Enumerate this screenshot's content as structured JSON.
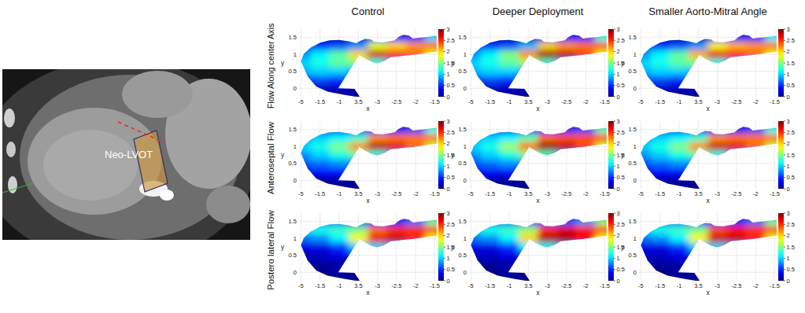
{
  "figure": {
    "columns": [
      "Control",
      "Deeper Deployment",
      "Smaller Aorto-Mitral Angle"
    ],
    "rows": [
      "Flow Along center Axis",
      "Anteroseptal Flow",
      "Postero lateral Flow"
    ],
    "image_label": "Neo-LVOT"
  },
  "chart_data": [
    {
      "type": "heatmap",
      "x_label": "x",
      "y_label": "y",
      "categories": [
        "-5",
        "-1.5",
        "-1",
        "3.5",
        "-3",
        "-2.5",
        "-2",
        "-1.5"
      ],
      "ylim": [
        -0.25,
        1.75
      ],
      "yticks": [
        0,
        0.5,
        1,
        1.5
      ],
      "grid": true,
      "y": [
        1.75,
        1.5,
        1.25,
        1,
        0.75,
        0.5,
        0.25,
        0,
        -0.25
      ],
      "cells": [
        [
          0,
          0,
          0,
          0,
          0,
          0,
          0,
          0
        ],
        [
          0,
          0.2,
          0.1,
          0.2,
          0.3,
          0.4,
          0.5,
          1.0
        ],
        [
          0.3,
          0.5,
          0.6,
          0.8,
          1.8,
          2.0,
          2.2,
          2.3
        ],
        [
          0.8,
          1.1,
          1.4,
          2.0,
          2.8,
          2.6,
          2.3,
          1.8
        ],
        [
          1.0,
          1.2,
          1.4,
          1.5,
          1.2,
          0.8,
          0.4,
          0.2
        ],
        [
          0.9,
          1.0,
          1.0,
          0.8,
          0.3,
          0,
          0,
          0
        ],
        [
          0.5,
          0.6,
          0.5,
          0.3,
          0.1,
          0,
          0,
          0
        ],
        [
          0.1,
          0.2,
          0.2,
          0.2,
          0.1,
          0,
          0,
          0
        ],
        [
          0,
          0,
          0,
          0,
          0,
          0,
          0,
          0
        ]
      ],
      "colorbar": {
        "range": [
          0,
          3
        ],
        "ticks": [
          0,
          0.5,
          1,
          1.5,
          2,
          2.5,
          3
        ]
      }
    },
    {
      "type": "heatmap",
      "x_label": "x",
      "y_label": "y",
      "categories": [
        "-5",
        "-1.5",
        "-1",
        "3.5",
        "-3",
        "-2.5",
        "-2",
        "-1.5"
      ],
      "ylim": [
        -0.25,
        1.75
      ],
      "yticks": [
        0,
        0.5,
        1,
        1.5
      ],
      "grid": true,
      "y": [
        1.75,
        1.5,
        1.25,
        1,
        0.75,
        0.5,
        0.25,
        0,
        -0.25
      ],
      "cells": [
        [
          0,
          0,
          0,
          0,
          0,
          0,
          0,
          0
        ],
        [
          0,
          0.2,
          0.1,
          0.2,
          0.3,
          0.4,
          0.5,
          1.2
        ],
        [
          0.3,
          0.5,
          0.6,
          0.9,
          2.0,
          2.2,
          2.3,
          2.4
        ],
        [
          0.8,
          1.1,
          1.5,
          2.2,
          2.95,
          2.8,
          2.4,
          1.8
        ],
        [
          1.0,
          1.2,
          1.4,
          1.6,
          1.3,
          0.8,
          0.4,
          0.2
        ],
        [
          0.9,
          1.0,
          1.0,
          0.8,
          0.3,
          0,
          0,
          0
        ],
        [
          0.5,
          0.6,
          0.5,
          0.3,
          0.1,
          0,
          0,
          0
        ],
        [
          0.1,
          0.2,
          0.2,
          0.2,
          0.1,
          0,
          0,
          0
        ],
        [
          0,
          0,
          0,
          0,
          0,
          0,
          0,
          0
        ]
      ],
      "colorbar": {
        "range": [
          0,
          3
        ],
        "ticks": [
          0,
          0.5,
          1,
          1.5,
          2,
          2.5,
          3
        ]
      }
    },
    {
      "type": "heatmap",
      "x_label": "x",
      "y_label": "y",
      "categories": [
        "-5",
        "-1.5",
        "-1",
        "3.5",
        "-3",
        "-2.5",
        "-2",
        "-1.5"
      ],
      "ylim": [
        -0.25,
        1.75
      ],
      "yticks": [
        0,
        0.5,
        1,
        1.5
      ],
      "grid": true,
      "y": [
        1.75,
        1.5,
        1.25,
        1,
        0.75,
        0.5,
        0.25,
        0,
        -0.25
      ],
      "cells": [
        [
          0,
          0,
          0,
          0,
          0,
          0,
          0,
          0
        ],
        [
          0,
          0.2,
          0.1,
          0.2,
          0.3,
          0.4,
          0.5,
          1.1
        ],
        [
          0.3,
          0.5,
          0.6,
          0.8,
          1.9,
          2.1,
          2.2,
          2.3
        ],
        [
          0.8,
          1.1,
          1.4,
          2.1,
          2.75,
          2.6,
          2.3,
          1.8
        ],
        [
          1.0,
          1.2,
          1.4,
          1.5,
          1.2,
          0.8,
          0.4,
          0.2
        ],
        [
          0.9,
          1.0,
          1.0,
          0.8,
          0.3,
          0,
          0,
          0
        ],
        [
          0.5,
          0.6,
          0.5,
          0.3,
          0.1,
          0,
          0,
          0
        ],
        [
          0.1,
          0.2,
          0.2,
          0.2,
          0.1,
          0,
          0,
          0
        ],
        [
          0,
          0,
          0,
          0,
          0,
          0,
          0,
          0
        ]
      ],
      "colorbar": {
        "range": [
          0,
          3
        ],
        "ticks": [
          0,
          0.5,
          1,
          1.5,
          2,
          2.5,
          3
        ]
      }
    },
    {
      "type": "heatmap",
      "x_label": "x",
      "y_label": "y",
      "categories": [
        "-5",
        "-1.5",
        "-1",
        "3.5",
        "-3",
        "-2.5",
        "-2",
        "-1.5"
      ],
      "ylim": [
        -0.25,
        1.75
      ],
      "yticks": [
        0,
        0.5,
        1,
        1.5
      ],
      "grid": true,
      "y": [
        1.75,
        1.5,
        1.25,
        1,
        0.75,
        0.5,
        0.25,
        0,
        -0.25
      ],
      "cells": [
        [
          0,
          0,
          0,
          0,
          0,
          0,
          0,
          0
        ],
        [
          0.3,
          0.5,
          0.5,
          0.4,
          0.4,
          0.4,
          0.6,
          1.2
        ],
        [
          0.8,
          1.0,
          1.1,
          1.3,
          2.2,
          2.3,
          2.3,
          2.3
        ],
        [
          1.0,
          1.2,
          1.5,
          2.2,
          2.85,
          2.7,
          2.3,
          1.7
        ],
        [
          0.8,
          1.0,
          1.2,
          1.4,
          1.2,
          0.8,
          0.4,
          0.2
        ],
        [
          0.6,
          0.7,
          0.8,
          0.7,
          0.3,
          0,
          0,
          0
        ],
        [
          0.3,
          0.4,
          0.4,
          0.3,
          0.1,
          0,
          0,
          0
        ],
        [
          0.1,
          0.1,
          0.1,
          0.1,
          0.1,
          0,
          0,
          0
        ],
        [
          0,
          0,
          0,
          0,
          0,
          0,
          0,
          0
        ]
      ],
      "colorbar": {
        "range": [
          0,
          3
        ],
        "ticks": [
          0,
          0.5,
          1,
          1.5,
          2,
          2.5,
          3
        ]
      }
    },
    {
      "type": "heatmap",
      "x_label": "x",
      "y_label": "y",
      "categories": [
        "-5",
        "-1.5",
        "-1",
        "3.5",
        "-3",
        "-2.5",
        "-2",
        "-1.5"
      ],
      "ylim": [
        -0.25,
        1.75
      ],
      "yticks": [
        0,
        0.5,
        1,
        1.5
      ],
      "grid": true,
      "y": [
        1.75,
        1.5,
        1.25,
        1,
        0.75,
        0.5,
        0.25,
        0,
        -0.25
      ],
      "cells": [
        [
          0,
          0,
          0,
          0,
          0,
          0,
          0,
          0
        ],
        [
          0.3,
          0.5,
          0.5,
          0.4,
          0.4,
          0.5,
          0.6,
          1.3
        ],
        [
          0.8,
          1.0,
          1.1,
          1.4,
          2.3,
          2.4,
          2.4,
          2.4
        ],
        [
          1.0,
          1.2,
          1.6,
          2.3,
          2.95,
          2.8,
          2.4,
          1.7
        ],
        [
          0.8,
          1.0,
          1.2,
          1.5,
          1.3,
          0.8,
          0.4,
          0.2
        ],
        [
          0.6,
          0.7,
          0.8,
          0.7,
          0.3,
          0,
          0,
          0
        ],
        [
          0.3,
          0.4,
          0.4,
          0.3,
          0.1,
          0,
          0,
          0
        ],
        [
          0.1,
          0.1,
          0.1,
          0.1,
          0.1,
          0,
          0,
          0
        ],
        [
          0,
          0,
          0,
          0,
          0,
          0,
          0,
          0
        ]
      ],
      "colorbar": {
        "range": [
          0,
          3
        ],
        "ticks": [
          0,
          0.5,
          1,
          1.5,
          2,
          2.5,
          3
        ]
      }
    },
    {
      "type": "heatmap",
      "x_label": "x",
      "y_label": "y",
      "categories": [
        "-5",
        "-1.5",
        "-1",
        "3.5",
        "-3",
        "-2.5",
        "-2",
        "-1.5"
      ],
      "ylim": [
        -0.25,
        1.75
      ],
      "yticks": [
        0,
        0.5,
        1,
        1.5
      ],
      "grid": true,
      "y": [
        1.75,
        1.5,
        1.25,
        1,
        0.75,
        0.5,
        0.25,
        0,
        -0.25
      ],
      "cells": [
        [
          0,
          0,
          0,
          0,
          0,
          0,
          0,
          0
        ],
        [
          0.3,
          0.5,
          0.5,
          0.4,
          0.4,
          0.4,
          0.6,
          1.2
        ],
        [
          0.8,
          1.0,
          1.1,
          1.3,
          2.2,
          2.3,
          2.3,
          2.3
        ],
        [
          1.0,
          1.2,
          1.5,
          2.2,
          2.8,
          2.7,
          2.3,
          1.7
        ],
        [
          0.8,
          1.0,
          1.2,
          1.4,
          1.2,
          0.8,
          0.4,
          0.2
        ],
        [
          0.6,
          0.7,
          0.8,
          0.7,
          0.3,
          0,
          0,
          0
        ],
        [
          0.3,
          0.4,
          0.4,
          0.3,
          0.1,
          0,
          0,
          0
        ],
        [
          0.1,
          0.1,
          0.1,
          0.1,
          0.1,
          0,
          0,
          0
        ],
        [
          0,
          0,
          0,
          0,
          0,
          0,
          0,
          0
        ]
      ],
      "colorbar": {
        "range": [
          0,
          3
        ],
        "ticks": [
          0,
          0.5,
          1,
          1.5,
          2,
          2.5,
          3
        ]
      }
    },
    {
      "type": "heatmap",
      "x_label": "x",
      "y_label": "y",
      "categories": [
        "-5",
        "-1.5",
        "-1",
        "3.5",
        "-3",
        "-2.5",
        "-2",
        "-1.5"
      ],
      "ylim": [
        -0.25,
        1.75
      ],
      "yticks": [
        0,
        0.5,
        1,
        1.5
      ],
      "grid": true,
      "y": [
        1.75,
        1.5,
        1.25,
        1,
        0.75,
        0.5,
        0.25,
        0,
        -0.25
      ],
      "cells": [
        [
          0,
          0,
          0,
          0,
          0,
          0,
          0,
          0
        ],
        [
          0.4,
          0.7,
          0.7,
          0.5,
          0.5,
          0.5,
          0.7,
          1.4
        ],
        [
          1.0,
          1.2,
          1.3,
          1.5,
          2.3,
          2.5,
          2.5,
          2.4
        ],
        [
          0.7,
          0.8,
          1.1,
          1.9,
          2.7,
          2.8,
          2.5,
          1.8
        ],
        [
          0.3,
          0.3,
          0.5,
          1.0,
          1.0,
          0.8,
          0.4,
          0.2
        ],
        [
          0.2,
          0.2,
          0.3,
          0.3,
          0.2,
          0,
          0,
          0
        ],
        [
          0.1,
          0.1,
          0.1,
          0.1,
          0.1,
          0,
          0,
          0
        ],
        [
          0,
          0,
          0.1,
          0.1,
          0.1,
          0,
          0,
          0
        ],
        [
          0,
          0,
          0,
          0,
          0,
          0,
          0,
          0
        ]
      ],
      "colorbar": {
        "range": [
          0,
          3
        ],
        "ticks": [
          0,
          0.5,
          1,
          1.5,
          2,
          2.5,
          3
        ]
      }
    },
    {
      "type": "heatmap",
      "x_label": "x",
      "y_label": "y",
      "categories": [
        "-5",
        "-1.5",
        "-1",
        "3.5",
        "-3",
        "-2.5",
        "-2",
        "-1.5"
      ],
      "ylim": [
        -0.25,
        1.75
      ],
      "yticks": [
        0,
        0.5,
        1,
        1.5
      ],
      "grid": true,
      "y": [
        1.75,
        1.5,
        1.25,
        1,
        0.75,
        0.5,
        0.25,
        0,
        -0.25
      ],
      "cells": [
        [
          0,
          0,
          0,
          0,
          0,
          0,
          0,
          0
        ],
        [
          0.4,
          0.7,
          0.7,
          0.5,
          0.6,
          0.6,
          0.8,
          1.5
        ],
        [
          1.0,
          1.2,
          1.3,
          1.6,
          2.5,
          2.7,
          2.6,
          2.4
        ],
        [
          0.7,
          0.8,
          1.1,
          2.0,
          2.9,
          2.9,
          2.6,
          1.8
        ],
        [
          0.3,
          0.3,
          0.5,
          1.1,
          1.1,
          0.8,
          0.4,
          0.2
        ],
        [
          0.2,
          0.2,
          0.3,
          0.3,
          0.2,
          0,
          0,
          0
        ],
        [
          0.1,
          0.1,
          0.1,
          0.1,
          0.1,
          0,
          0,
          0
        ],
        [
          0,
          0,
          0.1,
          0.1,
          0.1,
          0,
          0,
          0
        ],
        [
          0,
          0,
          0,
          0,
          0,
          0,
          0,
          0
        ]
      ],
      "colorbar": {
        "range": [
          0,
          3
        ],
        "ticks": [
          0,
          0.5,
          1,
          1.5,
          2,
          2.5,
          3
        ]
      }
    },
    {
      "type": "heatmap",
      "x_label": "x",
      "y_label": "y",
      "categories": [
        "-5",
        "-1.5",
        "-1",
        "3.5",
        "-3",
        "-2.5",
        "-2",
        "-1.5"
      ],
      "ylim": [
        -0.25,
        1.75
      ],
      "yticks": [
        0,
        0.5,
        1,
        1.5
      ],
      "grid": true,
      "y": [
        1.75,
        1.5,
        1.25,
        1,
        0.75,
        0.5,
        0.25,
        0,
        -0.25
      ],
      "cells": [
        [
          0,
          0,
          0,
          0,
          0,
          0,
          0,
          0
        ],
        [
          0.4,
          0.7,
          0.7,
          0.5,
          0.5,
          0.5,
          0.7,
          1.4
        ],
        [
          1.0,
          1.2,
          1.3,
          1.5,
          2.4,
          2.6,
          2.5,
          2.4
        ],
        [
          0.7,
          0.8,
          1.1,
          1.9,
          2.8,
          2.8,
          2.5,
          1.8
        ],
        [
          0.3,
          0.3,
          0.5,
          1.0,
          1.0,
          0.8,
          0.4,
          0.2
        ],
        [
          0.2,
          0.2,
          0.3,
          0.3,
          0.2,
          0,
          0,
          0
        ],
        [
          0.1,
          0.1,
          0.1,
          0.1,
          0.1,
          0,
          0,
          0
        ],
        [
          0,
          0,
          0.1,
          0.1,
          0.1,
          0,
          0,
          0
        ],
        [
          0,
          0,
          0,
          0,
          0,
          0,
          0,
          0
        ]
      ],
      "colorbar": {
        "range": [
          0,
          3
        ],
        "ticks": [
          0,
          0.5,
          1,
          1.5,
          2,
          2.5,
          3
        ]
      }
    }
  ]
}
